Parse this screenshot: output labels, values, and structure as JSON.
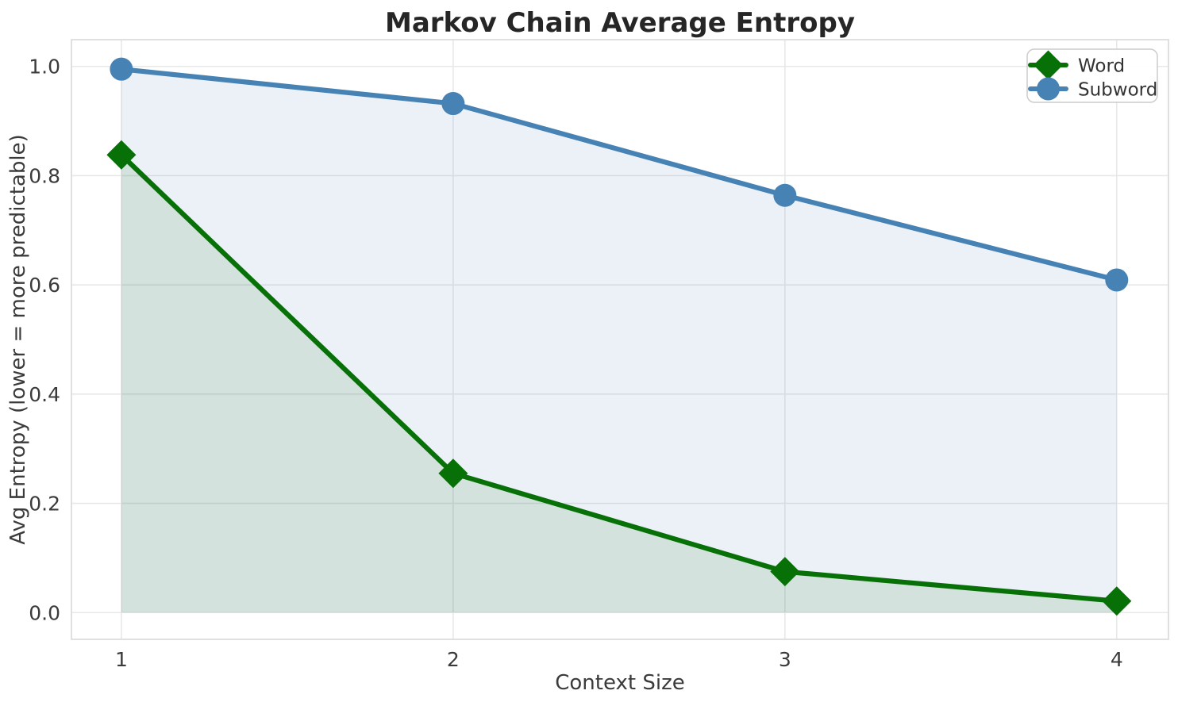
{
  "chart_data": {
    "type": "line",
    "title": "Markov Chain Average Entropy",
    "xlabel": "Context Size",
    "ylabel": "Avg Entropy (lower = more predictable)",
    "x": [
      1,
      2,
      3,
      4
    ],
    "series": [
      {
        "name": "Word",
        "values": [
          0.838,
          0.255,
          0.075,
          0.021
        ],
        "color": "#077007",
        "marker": "diamond",
        "fill_color": "rgba(0,100,0,0.10)"
      },
      {
        "name": "Subword",
        "values": [
          0.995,
          0.932,
          0.764,
          0.609
        ],
        "color": "#4682B4",
        "marker": "circle",
        "fill_color": "rgba(70,130,180,0.11)"
      }
    ],
    "xtick_labels": [
      "1",
      "2",
      "3",
      "4"
    ],
    "xtick_values": [
      1,
      2,
      3,
      4
    ],
    "ytick_labels": [
      "0.0",
      "0.2",
      "0.4",
      "0.6",
      "0.8",
      "1.0"
    ],
    "ytick_values": [
      0,
      0.2,
      0.4,
      0.6,
      0.8,
      1.0
    ],
    "xlim": [
      0.8495,
      4.156
    ],
    "ylim": [
      -0.049,
      1.049
    ],
    "grid": true,
    "area_fill": true,
    "fill_baseline": 0,
    "legend": {
      "position": "upper right",
      "entries": [
        "Word",
        "Subword"
      ]
    }
  },
  "style": {
    "grid_color": "#E8E8E8",
    "spine_color": "#DCDCDC",
    "tick_color": "#3B3B3B",
    "label_color": "#3B3B3B",
    "title_color": "#262626",
    "legend_border": "#CCCCCC",
    "legend_bg": "#FFFFFF"
  }
}
